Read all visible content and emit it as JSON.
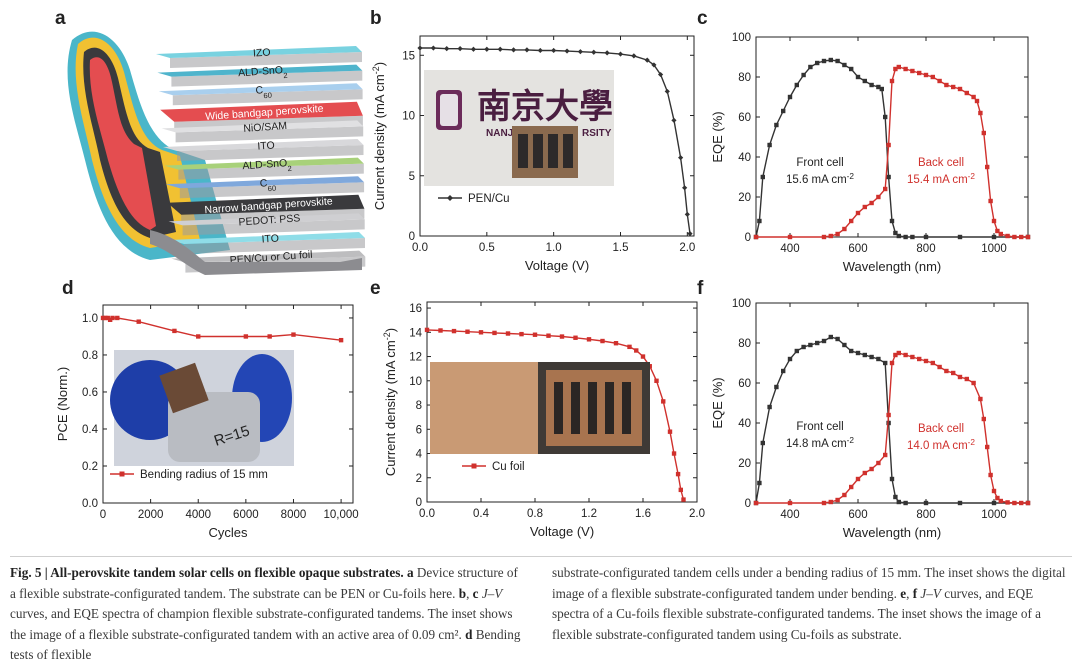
{
  "panel_letters": {
    "a": "a",
    "b": "b",
    "c": "c",
    "d": "d",
    "e": "e",
    "f": "f"
  },
  "panel_a": {
    "layers": [
      "IZO",
      "ALD-SnO2",
      "C60",
      "Wide bandgap perovskite",
      "NiO/SAM",
      "ITO",
      "ALD-SnO2",
      "C60",
      "Narrow bandgap perovskite",
      "PEDOT: PSS",
      "ITO",
      "PEN/Cu or Cu foil"
    ]
  },
  "inset_b": {
    "university_chinese": "南京大學",
    "university_latin_left": "NANJ",
    "university_latin_right": "RSITY"
  },
  "inset_e": {
    "sample_marker": "R=15"
  },
  "chart_data": [
    {
      "panel": "b",
      "type": "line",
      "xlabel": "Voltage (V)",
      "ylabel": "Current density (mA cm-2)",
      "xlim": [
        0,
        2.05
      ],
      "ylim": [
        0,
        16.6
      ],
      "xticks": [
        "0.0",
        "0.5",
        "1.0",
        "1.5",
        "2.0"
      ],
      "yticks": [
        "0",
        "5",
        "10",
        "15"
      ],
      "legend": "bottom-left",
      "series": [
        {
          "name": "PEN/Cu",
          "color": "#333333",
          "x": [
            0,
            0.1,
            0.2,
            0.3,
            0.4,
            0.5,
            0.6,
            0.7,
            0.8,
            0.9,
            1.0,
            1.1,
            1.2,
            1.3,
            1.4,
            1.5,
            1.6,
            1.7,
            1.75,
            1.8,
            1.85,
            1.9,
            1.95,
            1.98,
            2.0,
            2.02
          ],
          "y": [
            15.6,
            15.6,
            15.55,
            15.55,
            15.5,
            15.5,
            15.5,
            15.45,
            15.45,
            15.4,
            15.4,
            15.35,
            15.3,
            15.25,
            15.2,
            15.1,
            14.95,
            14.6,
            14.2,
            13.4,
            12.0,
            9.6,
            6.5,
            4.0,
            1.8,
            0.2
          ]
        }
      ]
    },
    {
      "panel": "c",
      "type": "line",
      "xlabel": "Wavelength (nm)",
      "ylabel": "EQE (%)",
      "xlim": [
        300,
        1100
      ],
      "ylim": [
        0,
        100
      ],
      "xticks": [
        "400",
        "600",
        "800",
        "1000"
      ],
      "yticks": [
        "0",
        "20",
        "40",
        "60",
        "80",
        "100"
      ],
      "annotations": [
        {
          "line1": "Front cell",
          "line2": "15.6 mA cm-2"
        },
        {
          "line1": "Back cell",
          "line2": "15.4 mA cm-2"
        }
      ],
      "series": [
        {
          "name": "Front cell",
          "color": "#333333",
          "x": [
            300,
            310,
            320,
            340,
            360,
            380,
            400,
            420,
            440,
            460,
            480,
            500,
            520,
            540,
            560,
            580,
            600,
            620,
            640,
            660,
            670,
            680,
            690,
            700,
            710,
            720,
            740,
            760,
            800,
            900,
            1000,
            1100
          ],
          "y": [
            0,
            8,
            30,
            46,
            56,
            63,
            70,
            76,
            81,
            85,
            87,
            88,
            88.5,
            88,
            86,
            84,
            80,
            78,
            76,
            75,
            74,
            60,
            30,
            8,
            2,
            0.5,
            0,
            0,
            0,
            0,
            0,
            0
          ]
        },
        {
          "name": "Back cell",
          "color": "#d0312d",
          "x": [
            300,
            400,
            500,
            520,
            540,
            560,
            580,
            600,
            620,
            640,
            660,
            680,
            690,
            700,
            710,
            720,
            740,
            760,
            780,
            800,
            820,
            840,
            860,
            880,
            900,
            920,
            940,
            950,
            960,
            970,
            980,
            990,
            1000,
            1010,
            1020,
            1040,
            1060,
            1080,
            1100
          ],
          "y": [
            0,
            0,
            0,
            0.5,
            1.5,
            4,
            8,
            12,
            15,
            17,
            20,
            24,
            46,
            78,
            84,
            85,
            84,
            83,
            82,
            81,
            80,
            78,
            76,
            75,
            74,
            72,
            70,
            68,
            62,
            52,
            35,
            18,
            8,
            3,
            1.5,
            0.5,
            0,
            0,
            0
          ]
        }
      ]
    },
    {
      "panel": "d",
      "type": "line",
      "xlabel": "Cycles",
      "ylabel": "PCE (Norm.)",
      "xlim": [
        0,
        10500
      ],
      "ylim": [
        0,
        1.07
      ],
      "xticks": [
        "0",
        "2000",
        "4000",
        "6000",
        "8000",
        "10,000"
      ],
      "yticks": [
        "0.0",
        "0.2",
        "0.4",
        "0.6",
        "0.8",
        "1.0"
      ],
      "legend": "bottom-left",
      "series": [
        {
          "name": "Bending radius of 15 mm",
          "color": "#d0312d",
          "x": [
            0,
            100,
            200,
            300,
            400,
            600,
            1500,
            3000,
            4000,
            6000,
            7000,
            8000,
            10000
          ],
          "y": [
            1.0,
            1.0,
            1.0,
            0.99,
            1.0,
            1.0,
            0.98,
            0.93,
            0.9,
            0.9,
            0.9,
            0.91,
            0.88
          ]
        }
      ]
    },
    {
      "panel": "e",
      "type": "line",
      "xlabel": "Voltage (V)",
      "ylabel": "Current density (mA cm-2)",
      "xlim": [
        0,
        2.0
      ],
      "ylim": [
        0,
        16.5
      ],
      "xticks": [
        "0.0",
        "0.4",
        "0.8",
        "1.2",
        "1.6",
        "2.0"
      ],
      "yticks": [
        "0",
        "2",
        "4",
        "6",
        "8",
        "10",
        "12",
        "14",
        "16"
      ],
      "legend": "bottom-left",
      "series": [
        {
          "name": "Cu foil",
          "color": "#d0312d",
          "x": [
            0,
            0.1,
            0.2,
            0.3,
            0.4,
            0.5,
            0.6,
            0.7,
            0.8,
            0.9,
            1.0,
            1.1,
            1.2,
            1.3,
            1.4,
            1.5,
            1.55,
            1.6,
            1.65,
            1.7,
            1.75,
            1.8,
            1.83,
            1.86,
            1.88,
            1.9
          ],
          "y": [
            14.2,
            14.15,
            14.1,
            14.05,
            14.0,
            13.95,
            13.9,
            13.85,
            13.8,
            13.72,
            13.65,
            13.55,
            13.42,
            13.28,
            13.1,
            12.8,
            12.5,
            12.0,
            11.2,
            10.0,
            8.3,
            5.8,
            4.0,
            2.3,
            1.0,
            0.2
          ]
        }
      ]
    },
    {
      "panel": "f",
      "type": "line",
      "xlabel": "Wavelength (nm)",
      "ylabel": "EQE (%)",
      "xlim": [
        300,
        1100
      ],
      "ylim": [
        0,
        100
      ],
      "xticks": [
        "400",
        "600",
        "800",
        "1000"
      ],
      "yticks": [
        "0",
        "20",
        "40",
        "60",
        "80",
        "100"
      ],
      "annotations": [
        {
          "line1": "Front cell",
          "line2": "14.8 mA cm-2"
        },
        {
          "line1": "Back cell",
          "line2": "14.0 mA cm-2"
        }
      ],
      "series": [
        {
          "name": "Front cell",
          "color": "#333333",
          "x": [
            300,
            310,
            320,
            340,
            360,
            380,
            400,
            420,
            440,
            460,
            480,
            500,
            520,
            540,
            560,
            580,
            600,
            620,
            640,
            660,
            680,
            690,
            700,
            710,
            720,
            740,
            800,
            900,
            1000,
            1100
          ],
          "y": [
            0,
            10,
            30,
            48,
            58,
            66,
            72,
            76,
            78,
            79,
            80,
            81,
            83,
            82,
            79,
            76,
            75,
            74,
            73,
            72,
            70,
            40,
            12,
            3,
            0.5,
            0,
            0,
            0,
            0,
            0
          ]
        },
        {
          "name": "Back cell",
          "color": "#d0312d",
          "x": [
            300,
            400,
            500,
            520,
            540,
            560,
            580,
            600,
            620,
            640,
            660,
            680,
            690,
            700,
            710,
            720,
            740,
            760,
            780,
            800,
            820,
            840,
            860,
            880,
            900,
            920,
            940,
            960,
            970,
            980,
            990,
            1000,
            1010,
            1020,
            1040,
            1060,
            1080,
            1100
          ],
          "y": [
            0,
            0,
            0,
            0.5,
            1.5,
            4,
            8,
            12,
            15,
            17,
            20,
            24,
            44,
            70,
            74,
            75,
            74,
            73,
            72,
            71,
            70,
            68,
            66,
            65,
            63,
            62,
            60,
            52,
            42,
            28,
            14,
            6,
            2.5,
            1,
            0.3,
            0,
            0,
            0
          ]
        }
      ]
    }
  ],
  "caption": {
    "fig_label": "Fig. 5 | All-perovskite tandem solar cells on flexible opaque substrates.",
    "col1_text": [
      {
        "t": "a",
        "b": true
      },
      {
        "t": " Device structure of a flexible substrate-configurated tandem. The substrate can be PEN or Cu-foils here. "
      },
      {
        "t": "b",
        "b": true
      },
      {
        "t": ", "
      },
      {
        "t": "c",
        "b": true
      },
      {
        "t": " "
      },
      {
        "t": "J–V",
        "i": true
      },
      {
        "t": " curves, and EQE spectra of champion flexible substrate-configurated tandems. The inset shows the image of a flexible substrate-configurated tandem with an active area of 0.09 cm². "
      },
      {
        "t": "d",
        "b": true
      },
      {
        "t": " Bending tests of flexible"
      }
    ],
    "col2_text": [
      {
        "t": "substrate-configurated tandem cells under a bending radius of 15 mm. The inset shows the digital image of a flexible substrate-configurated tandem under bending. "
      },
      {
        "t": "e",
        "b": true
      },
      {
        "t": ", "
      },
      {
        "t": "f",
        "b": true
      },
      {
        "t": " "
      },
      {
        "t": "J–V",
        "i": true
      },
      {
        "t": " curves, and EQE spectra of a Cu-foils flexible substrate-configurated tandems. The inset shows the image of a flexible substrate-configurated tandem using Cu-foils as substrate."
      }
    ]
  }
}
